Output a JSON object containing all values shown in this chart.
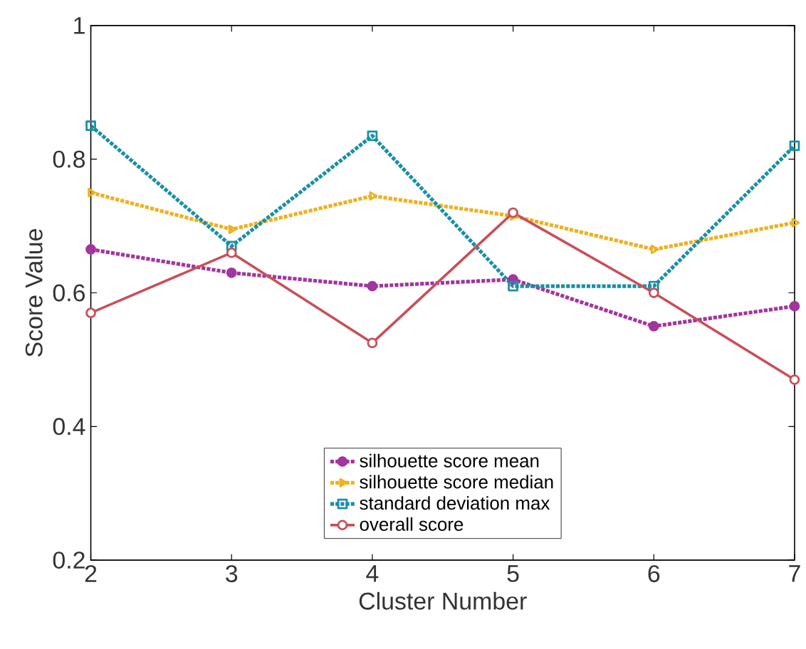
{
  "chart_data": {
    "type": "line",
    "xlabel": "Cluster Number",
    "ylabel": "Score Value",
    "x": [
      2,
      3,
      4,
      5,
      6,
      7
    ],
    "series": [
      {
        "name": "silhouette score mean",
        "color": "#a2359e",
        "marker": "circle",
        "line_style": "dotted",
        "values": [
          0.665,
          0.63,
          0.61,
          0.62,
          0.55,
          0.58
        ]
      },
      {
        "name": "silhouette score median",
        "color": "#edb120",
        "marker": "triangle",
        "line_style": "dotted",
        "values": [
          0.75,
          0.695,
          0.745,
          0.715,
          0.665,
          0.705
        ]
      },
      {
        "name": "standard deviation max",
        "color": "#1a8fa6",
        "marker": "square",
        "line_style": "dotted",
        "values": [
          0.85,
          0.67,
          0.835,
          0.61,
          0.61,
          0.82
        ]
      },
      {
        "name": "overall score",
        "color": "#c8505a",
        "marker": "circle",
        "line_style": "solid",
        "values": [
          0.57,
          0.66,
          0.525,
          0.72,
          0.6,
          0.47
        ]
      }
    ],
    "xlim": [
      2,
      7
    ],
    "ylim": [
      0.2,
      1
    ],
    "xticks": [
      2,
      3,
      4,
      5,
      6,
      7
    ],
    "yticks": [
      0.2,
      0.4,
      0.6,
      0.8,
      {
        "value": 1,
        "label": "1"
      }
    ],
    "grid": false,
    "legend": "bottom"
  }
}
